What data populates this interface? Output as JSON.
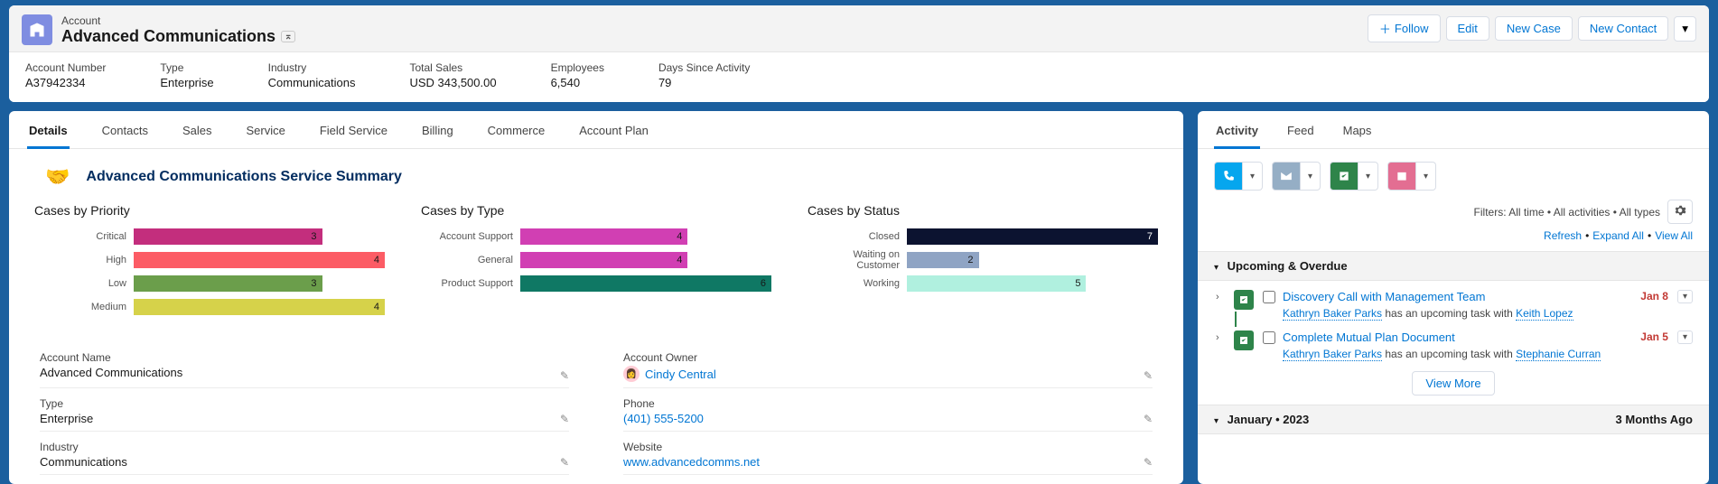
{
  "header": {
    "record_type": "Account",
    "name": "Advanced Communications",
    "actions": {
      "follow": "Follow",
      "edit": "Edit",
      "new_case": "New Case",
      "new_contact": "New Contact"
    }
  },
  "info": [
    {
      "label": "Account Number",
      "value": "A37942334"
    },
    {
      "label": "Type",
      "value": "Enterprise"
    },
    {
      "label": "Industry",
      "value": "Communications"
    },
    {
      "label": "Total Sales",
      "value": "USD 343,500.00"
    },
    {
      "label": "Employees",
      "value": "6,540"
    },
    {
      "label": "Days Since Activity",
      "value": "79"
    }
  ],
  "tabs": [
    "Details",
    "Contacts",
    "Sales",
    "Service",
    "Field Service",
    "Billing",
    "Commerce",
    "Account Plan"
  ],
  "tabs_active": 0,
  "summary_title": "Advanced Communications Service Summary",
  "charts": {
    "priority": {
      "title": "Cases by Priority",
      "max": 4,
      "rows": [
        {
          "cat": "Critical",
          "val": 3,
          "color": "#c32e7d"
        },
        {
          "cat": "High",
          "val": 4,
          "color": "#fc5c65"
        },
        {
          "cat": "Low",
          "val": 3,
          "color": "#6b9e4b"
        },
        {
          "cat": "Medium",
          "val": 4,
          "color": "#d6d24a"
        }
      ]
    },
    "type": {
      "title": "Cases by Type",
      "max": 6,
      "rows": [
        {
          "cat": "Account Support",
          "val": 4,
          "color": "#d13fb3"
        },
        {
          "cat": "General",
          "val": 4,
          "color": "#d13fb3"
        },
        {
          "cat": "Product Support",
          "val": 6,
          "color": "#0f7864"
        }
      ]
    },
    "status": {
      "title": "Cases by Status",
      "max": 7,
      "rows": [
        {
          "cat": "Closed",
          "val": 7,
          "color": "#0c1330",
          "text_color": "#ffffff"
        },
        {
          "cat": "Waiting on Customer",
          "val": 2,
          "color": "#8fa4c4"
        },
        {
          "cat": "Working",
          "val": 5,
          "color": "#b0f0df"
        }
      ]
    }
  },
  "details": {
    "left": [
      {
        "label": "Account Name",
        "value": "Advanced Communications",
        "link": false
      },
      {
        "label": "Type",
        "value": "Enterprise",
        "link": false
      },
      {
        "label": "Industry",
        "value": "Communications",
        "link": false
      }
    ],
    "right": [
      {
        "label": "Account Owner",
        "value": "Cindy Central",
        "link": true,
        "avatar": true
      },
      {
        "label": "Phone",
        "value": "(401) 555-5200",
        "link": true
      },
      {
        "label": "Website",
        "value": "www.advancedcomms.net",
        "link": true
      }
    ]
  },
  "right_tabs": [
    "Activity",
    "Feed",
    "Maps"
  ],
  "right_tabs_active": 0,
  "filters_text": "Filters: All time • All activities • All types",
  "links": {
    "refresh": "Refresh",
    "expand": "Expand All",
    "view_all": "View All"
  },
  "sections": {
    "upcoming": "Upcoming & Overdue",
    "month": "January • 2023",
    "month_age": "3 Months Ago"
  },
  "tasks": [
    {
      "title": "Discovery Call with Management Team",
      "date": "Jan 8",
      "owner": "Kathryn Baker Parks",
      "mid": "has an upcoming task with",
      "with": "Keith Lopez"
    },
    {
      "title": "Complete Mutual Plan Document",
      "date": "Jan 5",
      "owner": "Kathryn Baker Parks",
      "mid": "has an upcoming task with",
      "with": "Stephanie Curran"
    }
  ],
  "view_more": "View More"
}
